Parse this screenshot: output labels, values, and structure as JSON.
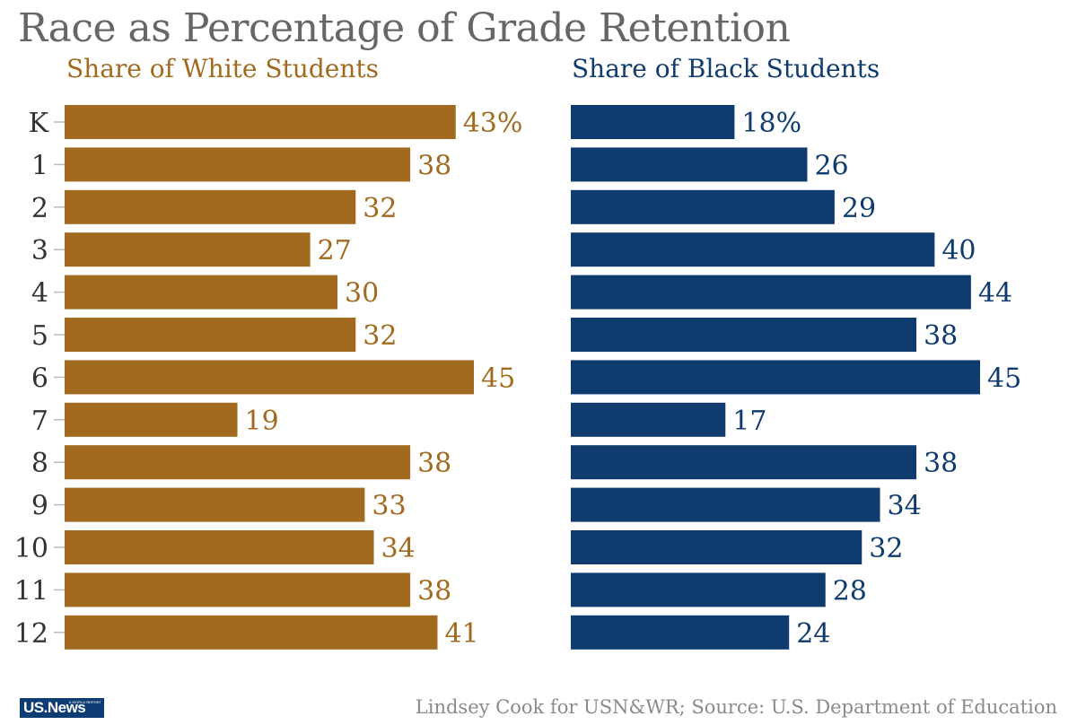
{
  "logo": {
    "text": "US.News",
    "tagline": "& WORLD REPORT"
  },
  "credit": "Lindsey Cook for USN&WR; Source: U.S. Department of Education",
  "colors": {
    "white_series": "#a26a1f",
    "black_series": "#0f3b6e",
    "title": "#666666",
    "credit": "#8a8a8a"
  },
  "chart_data": {
    "type": "bar",
    "orientation": "horizontal",
    "title": "Race as Percentage of Grade Retention",
    "categories": [
      "K",
      "1",
      "2",
      "3",
      "4",
      "5",
      "6",
      "7",
      "8",
      "9",
      "10",
      "11",
      "12"
    ],
    "series": [
      {
        "name": "Share of White Students",
        "values": [
          43,
          38,
          32,
          27,
          30,
          32,
          45,
          19,
          38,
          33,
          34,
          38,
          41
        ],
        "labels": [
          "43%",
          "38",
          "32",
          "27",
          "30",
          "32",
          "45",
          "19",
          "38",
          "33",
          "34",
          "38",
          "41"
        ]
      },
      {
        "name": "Share of Black Students",
        "values": [
          18,
          26,
          29,
          40,
          44,
          38,
          45,
          17,
          38,
          34,
          32,
          28,
          24
        ],
        "labels": [
          "18%",
          "26",
          "29",
          "40",
          "44",
          "38",
          "45",
          "17",
          "38",
          "34",
          "32",
          "28",
          "24"
        ]
      }
    ],
    "xlim": [
      0,
      45
    ],
    "grid": false,
    "legend": "none"
  }
}
